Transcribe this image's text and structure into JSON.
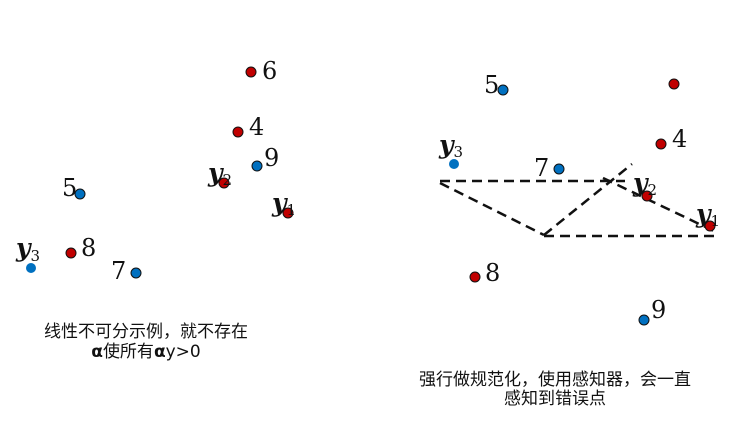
{
  "colors": {
    "red": "#c00000",
    "blue": "#0070c0",
    "stroke": "#111111"
  },
  "left_panel": {
    "labels": {
      "n6": "6",
      "n4": "4",
      "n9": "9",
      "n5": "5",
      "n8": "8",
      "n7": "7",
      "y": "y",
      "s1": "1",
      "s2": "2",
      "s3": "3"
    },
    "caption_line1": "线性不可分示例，就不存在",
    "caption_alpha1": "α",
    "caption_mid": "使所有",
    "caption_alpha2": "α",
    "caption_end": "y>0"
  },
  "right_panel": {
    "labels": {
      "n5": "5",
      "n4": "4",
      "n7": "7",
      "n8": "8",
      "n9": "9",
      "y": "y",
      "s1": "1",
      "s2": "2",
      "s3": "3"
    },
    "caption_line1": "强行做规范化，使用感知器，会一直",
    "caption_line2": "感知到错误点"
  }
}
